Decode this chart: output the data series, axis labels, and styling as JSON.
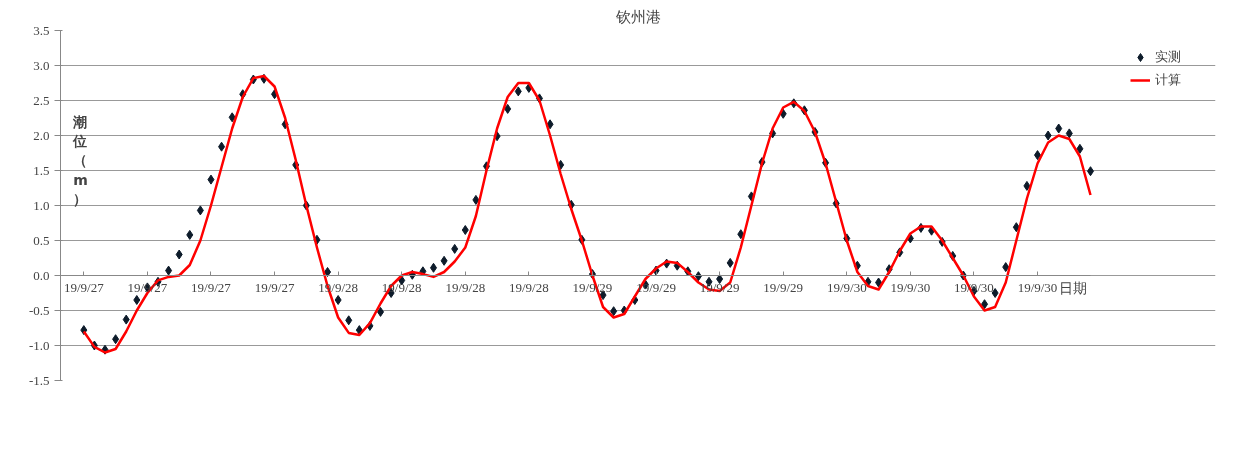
{
  "chart_data": {
    "type": "line",
    "title": "钦州港",
    "xlabel": "日期",
    "ylabel": "潮位（m）",
    "categories": [
      "19/9/27",
      null,
      null,
      null,
      null,
      null,
      "19/9/27",
      null,
      null,
      null,
      null,
      null,
      "19/9/27",
      null,
      null,
      null,
      null,
      null,
      "19/9/27",
      null,
      null,
      null,
      null,
      null,
      "19/9/28",
      null,
      null,
      null,
      null,
      null,
      "19/9/28",
      null,
      null,
      null,
      null,
      null,
      "19/9/28",
      null,
      null,
      null,
      null,
      null,
      "19/9/28",
      null,
      null,
      null,
      null,
      null,
      "19/9/29",
      null,
      null,
      null,
      null,
      null,
      "19/9/29",
      null,
      null,
      null,
      null,
      null,
      "19/9/29",
      null,
      null,
      null,
      null,
      null,
      "19/9/29",
      null,
      null,
      null,
      null,
      null,
      "19/9/30",
      null,
      null,
      null,
      null,
      null,
      "19/9/30",
      null,
      null,
      null,
      null,
      null,
      "19/9/30",
      null,
      null,
      null,
      null,
      null,
      "19/9/30",
      null,
      null,
      null,
      null,
      null
    ],
    "series": [
      {
        "name": "实测",
        "type": "scatter",
        "marker": "diamond",
        "color": "#0d1b2a",
        "values": [
          -0.78,
          -1.0,
          -1.06,
          -0.91,
          -0.63,
          -0.35,
          -0.17,
          -0.09,
          0.07,
          0.3,
          0.58,
          0.93,
          1.37,
          1.84,
          2.26,
          2.59,
          2.8,
          2.81,
          2.59,
          2.16,
          1.58,
          1.0,
          0.51,
          0.05,
          -0.35,
          -0.64,
          -0.78,
          -0.72,
          -0.52,
          -0.25,
          -0.07,
          0.01,
          0.06,
          0.11,
          0.21,
          0.38,
          0.65,
          1.08,
          1.56,
          1.99,
          2.38,
          2.63,
          2.68,
          2.53,
          2.16,
          1.58,
          1.01,
          0.51,
          0.02,
          -0.28,
          -0.51,
          -0.5,
          -0.35,
          -0.13,
          0.07,
          0.17,
          0.14,
          0.06,
          -0.01,
          -0.09,
          -0.05,
          0.18,
          0.59,
          1.13,
          1.62,
          2.03,
          2.31,
          2.46,
          2.36,
          2.05,
          1.61,
          1.03,
          0.53,
          0.14,
          -0.09,
          -0.1,
          0.09,
          0.33,
          0.53,
          0.68,
          0.64,
          0.48,
          0.28,
          0.0,
          -0.22,
          -0.41,
          -0.25,
          0.12,
          0.69,
          1.28,
          1.72,
          2.0,
          2.1,
          2.03,
          1.81,
          1.49
        ]
      },
      {
        "name": "计算",
        "line_style": "solid",
        "color": "#ff0000",
        "values": [
          -0.8,
          -1.02,
          -1.1,
          -1.05,
          -0.8,
          -0.5,
          -0.25,
          -0.07,
          -0.02,
          0.0,
          0.15,
          0.5,
          1.0,
          1.55,
          2.1,
          2.55,
          2.82,
          2.85,
          2.7,
          2.25,
          1.65,
          1.0,
          0.4,
          -0.15,
          -0.6,
          -0.82,
          -0.85,
          -0.68,
          -0.4,
          -0.15,
          0.0,
          0.05,
          0.02,
          -0.02,
          0.05,
          0.2,
          0.4,
          0.85,
          1.5,
          2.1,
          2.55,
          2.75,
          2.75,
          2.5,
          2.0,
          1.45,
          0.95,
          0.5,
          0.0,
          -0.45,
          -0.6,
          -0.55,
          -0.3,
          -0.05,
          0.1,
          0.2,
          0.18,
          0.05,
          -0.1,
          -0.2,
          -0.22,
          -0.1,
          0.4,
          1.0,
          1.6,
          2.1,
          2.4,
          2.48,
          2.35,
          2.05,
          1.6,
          1.05,
          0.5,
          0.05,
          -0.15,
          -0.2,
          0.05,
          0.35,
          0.6,
          0.7,
          0.7,
          0.5,
          0.25,
          0.0,
          -0.3,
          -0.5,
          -0.45,
          -0.1,
          0.5,
          1.1,
          1.6,
          1.9,
          2.0,
          1.95,
          1.7,
          1.15
        ]
      }
    ],
    "ylim": [
      -1.5,
      3.5
    ],
    "yticks": [
      {
        "value": -1.5,
        "label": "-1.5"
      },
      {
        "value": -1.0,
        "label": "-1.0"
      },
      {
        "value": -0.5,
        "label": "-0.5"
      },
      {
        "value": 0,
        "label": "0.0"
      },
      {
        "value": 0.5,
        "label": "0.5"
      },
      {
        "value": 1.0,
        "label": "1.0"
      },
      {
        "value": 1.5,
        "label": "1.5"
      },
      {
        "value": 2.0,
        "label": "2.0"
      },
      {
        "value": 2.5,
        "label": "2.5"
      },
      {
        "value": 3.0,
        "label": "3.0"
      },
      {
        "value": 3.5,
        "label": "3.5"
      }
    ],
    "grid": "y",
    "legend": "top right"
  }
}
